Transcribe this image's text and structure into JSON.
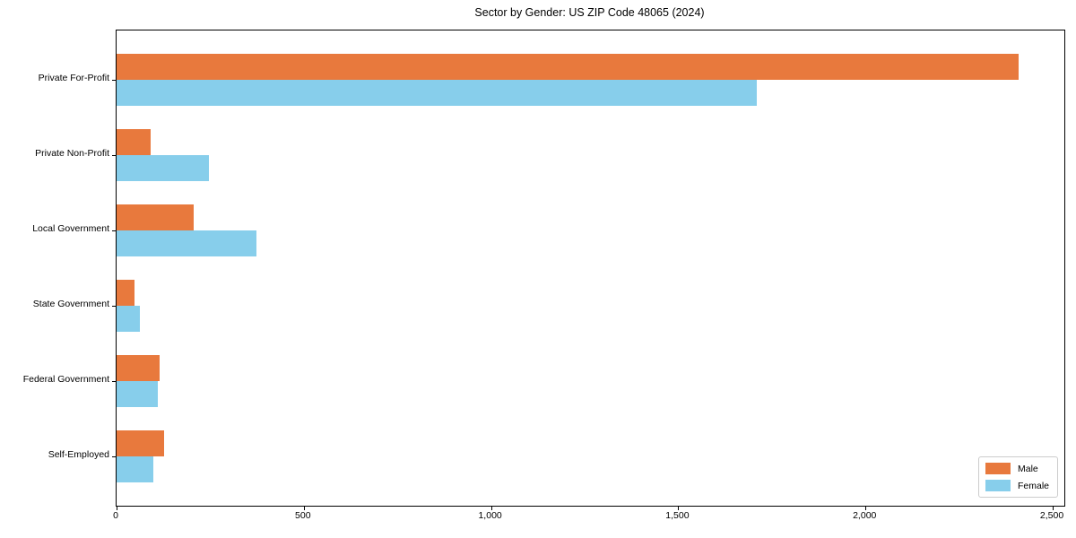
{
  "title": "Sector by Gender: US ZIP Code 48065 (2024)",
  "colors": {
    "male": "#E8793D",
    "female": "#87CEEB",
    "frame": "#000000",
    "legend_border": "#cccccc"
  },
  "x_axis": {
    "tick_labels": [
      "0",
      "500",
      "1,000",
      "1,500",
      "2,000",
      "2,500"
    ],
    "tick_values": [
      0,
      500,
      1000,
      1500,
      2000,
      2500
    ]
  },
  "legend": {
    "items": [
      {
        "label": "Male",
        "color": "#E8793D"
      },
      {
        "label": "Female",
        "color": "#87CEEB"
      }
    ],
    "position": "lower right"
  },
  "chart_data": {
    "type": "bar",
    "orientation": "horizontal",
    "title": "Sector by Gender: US ZIP Code 48065 (2024)",
    "categories": [
      "Private For-Profit",
      "Private Non-Profit",
      "Local Government",
      "State Government",
      "Federal Government",
      "Self-Employed"
    ],
    "series": [
      {
        "name": "Male",
        "color": "#E8793D",
        "values": [
          2410,
          90,
          207,
          48,
          116,
          128
        ]
      },
      {
        "name": "Female",
        "color": "#87CEEB",
        "values": [
          1710,
          247,
          374,
          63,
          111,
          97
        ]
      }
    ],
    "xlabel": "",
    "ylabel": "",
    "xlim": [
      0,
      2500
    ],
    "grid": false,
    "legend_position": "lower right"
  }
}
